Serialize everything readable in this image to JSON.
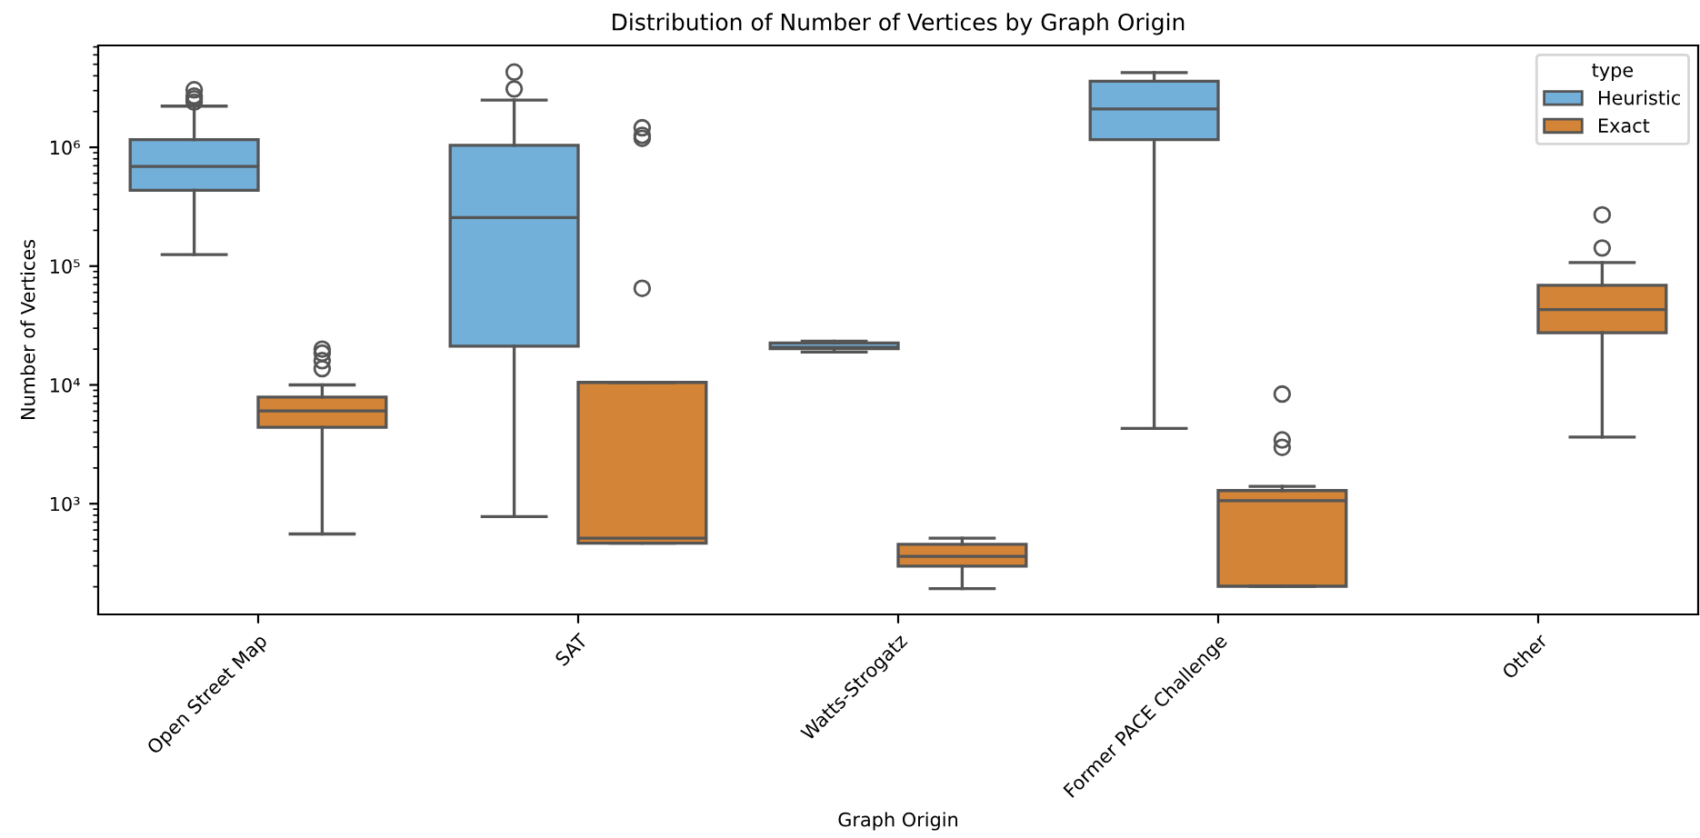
{
  "chart_data": {
    "type": "box",
    "title": "Distribution of Number of Vertices by Graph Origin",
    "xlabel": "Graph Origin",
    "ylabel": "Number of Vertices",
    "legend_title": "type",
    "legend": "top right",
    "grid": false,
    "log": "y",
    "categories": [
      "Open Street Map",
      "SAT",
      "Watts-Strogatz",
      "Former PACE Challenge",
      "Other"
    ],
    "ylim": [
      117,
      7200000
    ],
    "yticks": [
      {
        "value": 1000,
        "label": "10³"
      },
      {
        "value": 10000,
        "label": "10⁴"
      },
      {
        "value": 100000,
        "label": "10⁵"
      },
      {
        "value": 1000000,
        "label": "10⁶"
      }
    ],
    "series": [
      {
        "name": "Heuristic",
        "color": "#72afd9",
        "boxes": [
          {
            "low": 125000,
            "q1": 435000,
            "median": 690000,
            "q3": 1160000,
            "high": 2220000,
            "outliers": [
              2400000,
              2560000,
              2700000,
              3050000
            ]
          },
          {
            "low": 780,
            "q1": 21200,
            "median": 256000,
            "q3": 1040000,
            "high": 2500000,
            "outliers": [
              3100000,
              4300000
            ]
          },
          {
            "low": 18900,
            "q1": 20200,
            "median": 20700,
            "q3": 22500,
            "high": 23300
          },
          {
            "low": 4300,
            "q1": 1160000,
            "median": 2100000,
            "q3": 3600000,
            "high": 4250000
          },
          null
        ]
      },
      {
        "name": "Exact",
        "color": "#d48436",
        "boxes": [
          {
            "low": 556,
            "q1": 4400,
            "median": 6040,
            "q3": 7900,
            "high": 10000,
            "outliers": [
              13700,
              16000,
              18500,
              20000
            ]
          },
          {
            "low": 466,
            "q1": 466,
            "median": 512,
            "q3": 10500,
            "high": 10500,
            "outliers": [
              65000,
              1190000,
              1260000,
              1460000
            ]
          },
          {
            "low": 193,
            "q1": 298,
            "median": 360,
            "q3": 455,
            "high": 512
          },
          {
            "low": 202,
            "q1": 202,
            "median": 1060,
            "q3": 1290,
            "high": 1400,
            "outliers": [
              2980,
              3440,
              8370
            ]
          },
          {
            "low": 3640,
            "q1": 27500,
            "median": 43000,
            "q3": 69000,
            "high": 107000,
            "outliers": [
              142000,
              270000
            ]
          }
        ]
      }
    ]
  }
}
